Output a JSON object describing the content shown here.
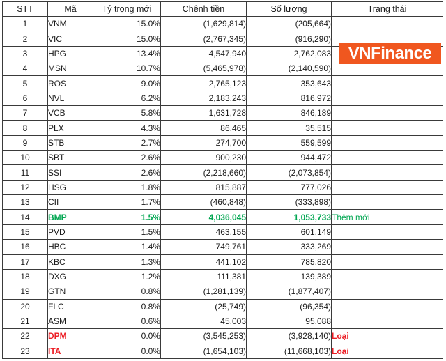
{
  "colors": {
    "border": "#3a3a3a",
    "green": "#00A651",
    "red": "#EC1D24",
    "orange": "#F0571F"
  },
  "logo": {
    "text": "VNFinance"
  },
  "status_labels": {
    "added": "Thêm mới",
    "removed": "Loại"
  },
  "chart_data": {
    "type": "table",
    "columns": [
      "STT",
      "Mã",
      "Tỷ trọng mới",
      "Chênh tiền",
      "Số lượng",
      "Trạng thái"
    ],
    "rows": [
      [
        "1",
        "VNM",
        "15.0%",
        "(1,629,814)",
        "(205,664)",
        ""
      ],
      [
        "2",
        "VIC",
        "15.0%",
        "(2,767,345)",
        "(916,290)",
        ""
      ],
      [
        "3",
        "HPG",
        "13.4%",
        "4,547,940",
        "2,762,083",
        ""
      ],
      [
        "4",
        "MSN",
        "10.7%",
        "(5,465,978)",
        "(2,140,590)",
        ""
      ],
      [
        "5",
        "ROS",
        "9.0%",
        "2,765,123",
        "353,643",
        ""
      ],
      [
        "6",
        "NVL",
        "6.2%",
        "2,183,243",
        "816,972",
        ""
      ],
      [
        "7",
        "VCB",
        "5.8%",
        "1,631,728",
        "846,189",
        ""
      ],
      [
        "8",
        "PLX",
        "4.3%",
        "86,465",
        "35,515",
        ""
      ],
      [
        "9",
        "STB",
        "2.7%",
        "274,700",
        "559,599",
        ""
      ],
      [
        "10",
        "SBT",
        "2.6%",
        "900,230",
        "944,472",
        ""
      ],
      [
        "11",
        "SSI",
        "2.6%",
        "(2,218,660)",
        "(2,073,854)",
        ""
      ],
      [
        "12",
        "HSG",
        "1.8%",
        "815,887",
        "777,026",
        ""
      ],
      [
        "13",
        "CII",
        "1.7%",
        "(460,848)",
        "(333,898)",
        ""
      ],
      [
        "14",
        "BMP",
        "1.5%",
        "4,036,045",
        "1,053,733",
        "Thêm mới"
      ],
      [
        "15",
        "PVD",
        "1.5%",
        "463,155",
        "601,149",
        ""
      ],
      [
        "16",
        "HBC",
        "1.4%",
        "749,761",
        "333,269",
        ""
      ],
      [
        "17",
        "KBC",
        "1.3%",
        "441,102",
        "785,820",
        ""
      ],
      [
        "18",
        "DXG",
        "1.2%",
        "111,381",
        "139,389",
        ""
      ],
      [
        "19",
        "GTN",
        "0.8%",
        "(1,281,139)",
        "(1,877,407)",
        ""
      ],
      [
        "20",
        "FLC",
        "0.8%",
        "(25,749)",
        "(96,354)",
        ""
      ],
      [
        "21",
        "ASM",
        "0.6%",
        "45,003",
        "95,088",
        ""
      ],
      [
        "22",
        "DPM",
        "0.0%",
        "(3,545,253)",
        "(3,928,140)",
        "Loại"
      ],
      [
        "23",
        "ITA",
        "0.0%",
        "(1,654,103)",
        "(11,668,103)",
        "Loại"
      ]
    ],
    "row_highlights": {
      "14": "green",
      "22": "red",
      "23": "red"
    }
  }
}
